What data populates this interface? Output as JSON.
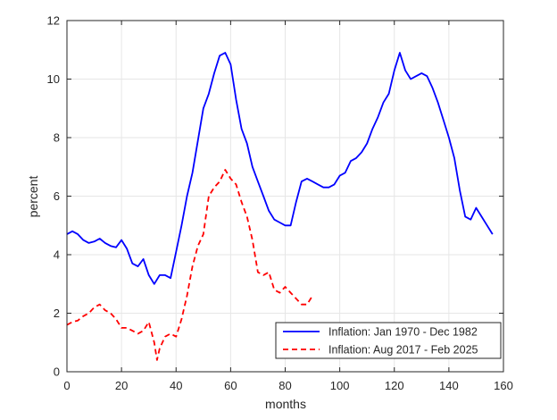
{
  "chart_data": {
    "type": "line",
    "xlabel": "months",
    "ylabel": "percent",
    "xlim": [
      0,
      160
    ],
    "ylim": [
      0,
      12
    ],
    "x_ticks": [
      "0",
      "20",
      "40",
      "60",
      "80",
      "100",
      "120",
      "140",
      "160"
    ],
    "y_ticks": [
      "0",
      "2",
      "4",
      "6",
      "8",
      "10",
      "12"
    ],
    "grid": true,
    "legend_position": "bottom-right",
    "series": [
      {
        "name": "Inflation: Jan 1970 - Dec 1982",
        "color": "#0000ff",
        "style": "solid",
        "x": [
          0,
          2,
          4,
          6,
          8,
          10,
          12,
          14,
          16,
          18,
          20,
          22,
          24,
          26,
          28,
          30,
          32,
          34,
          36,
          38,
          40,
          42,
          44,
          46,
          48,
          50,
          52,
          54,
          56,
          58,
          60,
          62,
          64,
          66,
          68,
          70,
          72,
          74,
          76,
          78,
          80,
          82,
          84,
          86,
          88,
          90,
          92,
          94,
          96,
          98,
          100,
          102,
          104,
          106,
          108,
          110,
          112,
          114,
          116,
          118,
          120,
          122,
          124,
          126,
          128,
          130,
          132,
          134,
          136,
          138,
          140,
          142,
          144,
          146,
          148,
          150,
          152,
          154,
          156
        ],
        "y": [
          4.7,
          4.8,
          4.7,
          4.5,
          4.4,
          4.45,
          4.55,
          4.4,
          4.3,
          4.25,
          4.5,
          4.2,
          3.7,
          3.6,
          3.85,
          3.3,
          3.0,
          3.3,
          3.3,
          3.2,
          4.1,
          5.0,
          6.0,
          6.8,
          7.9,
          9.0,
          9.5,
          10.2,
          10.8,
          10.9,
          10.5,
          9.3,
          8.3,
          7.8,
          7.0,
          6.5,
          6.0,
          5.5,
          5.2,
          5.1,
          5.0,
          5.0,
          5.8,
          6.5,
          6.6,
          6.5,
          6.4,
          6.3,
          6.3,
          6.4,
          6.7,
          6.8,
          7.2,
          7.3,
          7.5,
          7.8,
          8.3,
          8.7,
          9.2,
          9.5,
          10.3,
          10.9,
          10.3,
          10.0,
          10.1,
          10.2,
          10.1,
          9.7,
          9.2,
          8.6,
          8.0,
          7.3,
          6.2,
          5.3,
          5.2,
          5.6,
          5.3,
          5.0,
          4.7
        ]
      },
      {
        "name": "Inflation: Aug 2017 - Feb 2025",
        "color": "#ff0000",
        "style": "dashed",
        "x": [
          0,
          2,
          4,
          6,
          8,
          10,
          12,
          14,
          16,
          18,
          20,
          22,
          24,
          26,
          28,
          30,
          32,
          33,
          34,
          36,
          38,
          40,
          42,
          44,
          46,
          48,
          50,
          52,
          54,
          56,
          58,
          60,
          62,
          64,
          66,
          68,
          70,
          72,
          74,
          76,
          78,
          80,
          82,
          84,
          86,
          88,
          90
        ],
        "y": [
          1.6,
          1.7,
          1.75,
          1.9,
          2.0,
          2.2,
          2.3,
          2.1,
          2.0,
          1.8,
          1.5,
          1.5,
          1.4,
          1.3,
          1.4,
          1.7,
          1.0,
          0.4,
          0.8,
          1.2,
          1.3,
          1.2,
          1.8,
          2.6,
          3.6,
          4.3,
          4.7,
          6.0,
          6.3,
          6.5,
          6.9,
          6.6,
          6.4,
          5.8,
          5.3,
          4.5,
          3.4,
          3.3,
          3.4,
          2.8,
          2.7,
          2.9,
          2.7,
          2.5,
          2.3,
          2.3,
          2.6
        ]
      }
    ]
  }
}
